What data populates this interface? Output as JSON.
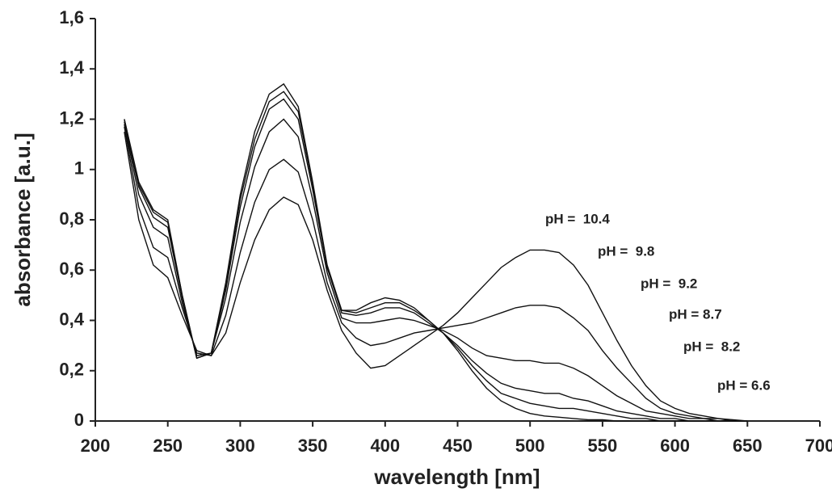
{
  "chart_data": {
    "type": "line",
    "x_label": "wavelength [nm]",
    "y_label": "absorbance [a.u.]",
    "x": [
      220,
      230,
      240,
      250,
      260,
      270,
      280,
      290,
      300,
      310,
      320,
      330,
      340,
      350,
      360,
      370,
      380,
      390,
      400,
      410,
      420,
      430,
      440,
      450,
      460,
      470,
      480,
      490,
      500,
      510,
      520,
      530,
      540,
      550,
      560,
      570,
      580,
      590,
      600,
      610,
      620,
      630,
      640,
      650
    ],
    "series": [
      {
        "name": "pH =  10.4",
        "color": "#111111",
        "values": [
          1.15,
          0.8,
          0.62,
          0.57,
          0.42,
          0.28,
          0.26,
          0.35,
          0.55,
          0.72,
          0.84,
          0.89,
          0.86,
          0.72,
          0.52,
          0.36,
          0.27,
          0.21,
          0.22,
          0.26,
          0.3,
          0.34,
          0.38,
          0.43,
          0.49,
          0.55,
          0.61,
          0.65,
          0.68,
          0.68,
          0.67,
          0.62,
          0.54,
          0.43,
          0.32,
          0.22,
          0.14,
          0.08,
          0.05,
          0.03,
          0.02,
          0.01,
          0.005,
          0
        ]
      },
      {
        "name": "pH =  9.8",
        "color": "#111111",
        "values": [
          1.17,
          0.85,
          0.69,
          0.65,
          0.45,
          0.27,
          0.26,
          0.42,
          0.67,
          0.87,
          1.0,
          1.04,
          0.99,
          0.8,
          0.55,
          0.39,
          0.33,
          0.3,
          0.31,
          0.33,
          0.35,
          0.36,
          0.37,
          0.38,
          0.39,
          0.41,
          0.43,
          0.45,
          0.46,
          0.46,
          0.45,
          0.41,
          0.36,
          0.28,
          0.21,
          0.15,
          0.09,
          0.05,
          0.03,
          0.02,
          0.01,
          0.01,
          0,
          0
        ]
      },
      {
        "name": "pH =  9.2",
        "color": "#111111",
        "values": [
          1.18,
          0.9,
          0.77,
          0.73,
          0.47,
          0.26,
          0.27,
          0.49,
          0.79,
          1.01,
          1.15,
          1.2,
          1.13,
          0.88,
          0.59,
          0.41,
          0.39,
          0.39,
          0.4,
          0.41,
          0.4,
          0.38,
          0.36,
          0.33,
          0.29,
          0.26,
          0.25,
          0.24,
          0.24,
          0.23,
          0.23,
          0.21,
          0.18,
          0.14,
          0.1,
          0.07,
          0.04,
          0.03,
          0.02,
          0.01,
          0.01,
          0,
          0,
          0
        ]
      },
      {
        "name": "pH = 8.7",
        "color": "#111111",
        "values": [
          1.19,
          0.93,
          0.81,
          0.77,
          0.49,
          0.25,
          0.27,
          0.52,
          0.85,
          1.09,
          1.24,
          1.28,
          1.2,
          0.92,
          0.61,
          0.43,
          0.42,
          0.43,
          0.45,
          0.45,
          0.43,
          0.39,
          0.35,
          0.3,
          0.24,
          0.19,
          0.15,
          0.13,
          0.12,
          0.11,
          0.11,
          0.09,
          0.08,
          0.06,
          0.04,
          0.03,
          0.02,
          0.01,
          0.01,
          0,
          0,
          0,
          0,
          0
        ]
      },
      {
        "name": "pH =  8.2",
        "color": "#111111",
        "values": [
          1.2,
          0.94,
          0.83,
          0.79,
          0.5,
          0.25,
          0.27,
          0.54,
          0.88,
          1.12,
          1.27,
          1.31,
          1.23,
          0.94,
          0.61,
          0.44,
          0.43,
          0.45,
          0.47,
          0.47,
          0.44,
          0.4,
          0.35,
          0.29,
          0.22,
          0.16,
          0.11,
          0.09,
          0.07,
          0.06,
          0.05,
          0.05,
          0.04,
          0.03,
          0.02,
          0.01,
          0.01,
          0,
          0,
          0,
          0,
          0,
          0,
          0
        ]
      },
      {
        "name": "pH = 6.6",
        "color": "#111111",
        "values": [
          1.2,
          0.95,
          0.84,
          0.8,
          0.5,
          0.25,
          0.27,
          0.55,
          0.9,
          1.15,
          1.3,
          1.34,
          1.25,
          0.95,
          0.62,
          0.44,
          0.44,
          0.47,
          0.49,
          0.48,
          0.45,
          0.4,
          0.35,
          0.28,
          0.2,
          0.13,
          0.08,
          0.05,
          0.03,
          0.02,
          0.015,
          0.01,
          0.005,
          0.005,
          0,
          0,
          0,
          0,
          0,
          0,
          0,
          0,
          0,
          0
        ]
      }
    ],
    "xlim": [
      200,
      700
    ],
    "xticks": [
      200,
      250,
      300,
      350,
      400,
      450,
      500,
      550,
      600,
      650,
      700
    ],
    "ylim": [
      0,
      1.6
    ],
    "yticks": [
      0,
      {
        "value": 0.2,
        "label": "0,2"
      },
      {
        "value": 0.4,
        "label": "0,4"
      },
      {
        "value": 0.6,
        "label": "0,6"
      },
      {
        "value": 0.8,
        "label": "0,8"
      },
      1,
      {
        "value": 1.2,
        "label": "1,2"
      },
      {
        "value": 1.4,
        "label": "1,4"
      },
      {
        "value": 1.6,
        "label": "1,6"
      }
    ],
    "grid": false
  }
}
